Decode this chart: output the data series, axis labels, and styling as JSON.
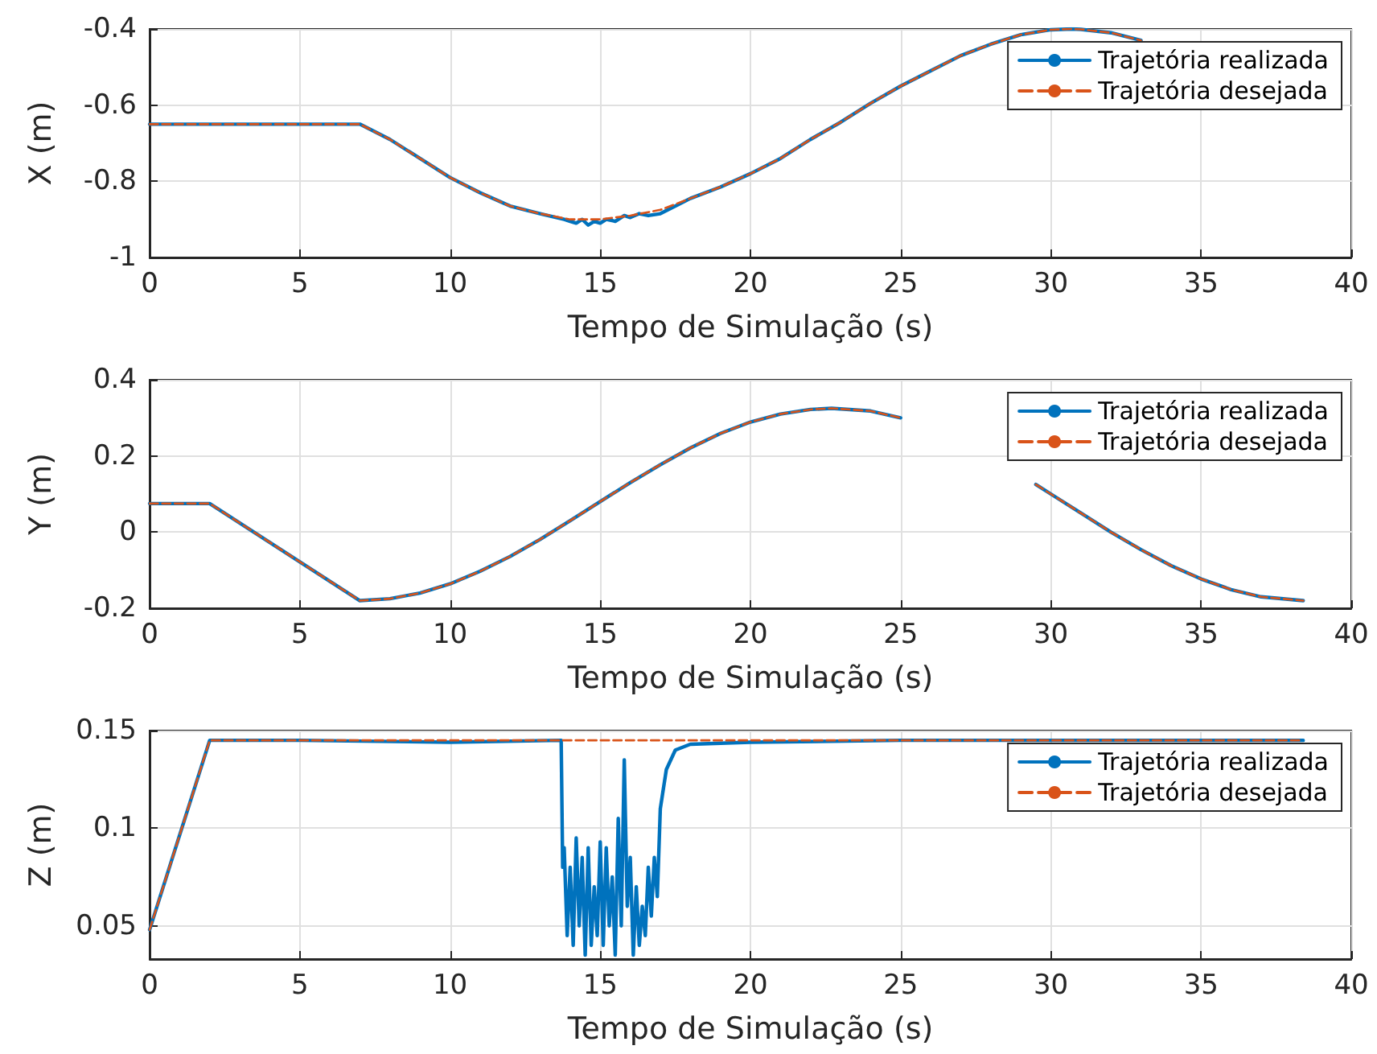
{
  "chart_data": [
    {
      "type": "line",
      "xlabel": "Tempo de Simulação (s)",
      "ylabel": "X (m)",
      "xlim": [
        0,
        40
      ],
      "xticks": [
        0,
        5,
        10,
        15,
        20,
        25,
        30,
        35,
        40
      ],
      "ylim": [
        -1,
        -0.4
      ],
      "yticks": [
        -1,
        -0.8,
        -0.6,
        -0.4
      ],
      "grid": true,
      "legend": "top right",
      "series": [
        {
          "name": "Trajetória realizada",
          "color": "#0072bd",
          "line_style": "solid",
          "x": [
            0,
            7,
            8,
            9,
            10,
            11,
            12,
            13,
            13.8,
            14,
            14.2,
            14.4,
            14.6,
            14.8,
            15,
            15.2,
            15.5,
            15.8,
            16,
            16.3,
            16.6,
            17,
            18,
            19,
            20,
            21,
            22,
            23,
            24,
            25,
            26,
            27,
            28,
            29,
            30,
            30.7,
            31,
            32,
            33
          ],
          "values": [
            -0.65,
            -0.65,
            -0.69,
            -0.74,
            -0.79,
            -0.83,
            -0.865,
            -0.885,
            -0.9,
            -0.905,
            -0.91,
            -0.9,
            -0.915,
            -0.905,
            -0.91,
            -0.9,
            -0.905,
            -0.89,
            -0.895,
            -0.885,
            -0.89,
            -0.885,
            -0.845,
            -0.815,
            -0.78,
            -0.74,
            -0.69,
            -0.645,
            -0.595,
            -0.55,
            -0.51,
            -0.47,
            -0.44,
            -0.415,
            -0.402,
            -0.4,
            -0.401,
            -0.41,
            -0.43
          ]
        },
        {
          "name": "Trajetória desejada",
          "color": "#d95319",
          "line_style": "dashed",
          "x": [
            0,
            7,
            8,
            9,
            10,
            11,
            12,
            13,
            14,
            15,
            16,
            17,
            18,
            19,
            20,
            21,
            22,
            23,
            24,
            25,
            26,
            27,
            28,
            29,
            30,
            30.7,
            31,
            32,
            33
          ],
          "values": [
            -0.65,
            -0.65,
            -0.69,
            -0.74,
            -0.79,
            -0.83,
            -0.865,
            -0.885,
            -0.9,
            -0.9,
            -0.89,
            -0.875,
            -0.845,
            -0.815,
            -0.78,
            -0.74,
            -0.69,
            -0.645,
            -0.595,
            -0.55,
            -0.51,
            -0.47,
            -0.44,
            -0.415,
            -0.402,
            -0.4,
            -0.401,
            -0.41,
            -0.43
          ]
        }
      ]
    },
    {
      "type": "line",
      "xlabel": "Tempo de Simulação (s)",
      "ylabel": "Y (m)",
      "xlim": [
        0,
        40
      ],
      "xticks": [
        0,
        5,
        10,
        15,
        20,
        25,
        30,
        35,
        40
      ],
      "ylim": [
        -0.2,
        0.4
      ],
      "yticks": [
        -0.2,
        0,
        0.2,
        0.4
      ],
      "grid": true,
      "legend": "top right",
      "series": [
        {
          "name": "Trajetória realizada",
          "color": "#0072bd",
          "line_style": "solid",
          "x": [
            0,
            2,
            7,
            8,
            9,
            10,
            11,
            12,
            13,
            14,
            15,
            16,
            17,
            18,
            19,
            20,
            21,
            22,
            22.7,
            24,
            25,
            26,
            29.5,
            30,
            31,
            32,
            33,
            34,
            35,
            36,
            37,
            38.4
          ],
          "values": [
            0.075,
            0.075,
            -0.18,
            -0.175,
            -0.16,
            -0.136,
            -0.103,
            -0.064,
            -0.019,
            0.03,
            0.08,
            0.13,
            0.177,
            0.221,
            0.259,
            0.289,
            0.31,
            0.322,
            0.325,
            0.318,
            0.3,
            null,
            0.125,
            0.1,
            0.05,
            0,
            -0.046,
            -0.088,
            -0.123,
            -0.151,
            -0.17,
            -0.18
          ]
        },
        {
          "name": "Trajetória desejada",
          "color": "#d95319",
          "line_style": "dashed",
          "x": [
            0,
            2,
            7,
            8,
            9,
            10,
            11,
            12,
            13,
            14,
            15,
            16,
            17,
            18,
            19,
            20,
            21,
            22,
            22.7,
            24,
            25,
            26,
            29.5,
            30,
            31,
            32,
            33,
            34,
            35,
            36,
            37,
            38.4
          ],
          "values": [
            0.075,
            0.075,
            -0.18,
            -0.175,
            -0.16,
            -0.136,
            -0.103,
            -0.064,
            -0.019,
            0.03,
            0.08,
            0.13,
            0.177,
            0.221,
            0.259,
            0.289,
            0.31,
            0.322,
            0.325,
            0.318,
            0.3,
            null,
            0.125,
            0.1,
            0.05,
            0,
            -0.046,
            -0.088,
            -0.123,
            -0.151,
            -0.17,
            -0.18
          ]
        }
      ]
    },
    {
      "type": "line",
      "xlabel": "Tempo de Simulação (s)",
      "ylabel": "Z (m)",
      "xlim": [
        0,
        40
      ],
      "xticks": [
        0,
        5,
        10,
        15,
        20,
        25,
        30,
        35,
        40
      ],
      "ylim": [
        0.033,
        0.15
      ],
      "yticks": [
        0.05,
        0.1,
        0.15
      ],
      "grid": true,
      "legend": "top right",
      "series": [
        {
          "name": "Trajetória realizada",
          "color": "#0072bd",
          "line_style": "solid",
          "x": [
            0,
            2,
            5,
            10,
            13.7,
            13.75,
            13.8,
            13.9,
            14,
            14.1,
            14.2,
            14.3,
            14.4,
            14.5,
            14.6,
            14.7,
            14.8,
            14.9,
            15,
            15.1,
            15.2,
            15.3,
            15.4,
            15.5,
            15.6,
            15.7,
            15.8,
            15.9,
            16,
            16.1,
            16.2,
            16.3,
            16.4,
            16.5,
            16.6,
            16.7,
            16.8,
            16.9,
            17,
            17.2,
            17.5,
            18,
            20,
            25,
            30,
            38.4
          ],
          "values": [
            0.048,
            0.145,
            0.145,
            0.144,
            0.145,
            0.08,
            0.09,
            0.045,
            0.08,
            0.04,
            0.095,
            0.05,
            0.085,
            0.035,
            0.09,
            0.04,
            0.07,
            0.045,
            0.093,
            0.04,
            0.09,
            0.05,
            0.075,
            0.035,
            0.105,
            0.05,
            0.135,
            0.06,
            0.085,
            0.035,
            0.07,
            0.04,
            0.06,
            0.045,
            0.08,
            0.055,
            0.085,
            0.065,
            0.11,
            0.13,
            0.14,
            0.143,
            0.144,
            0.145,
            0.145,
            0.145
          ]
        },
        {
          "name": "Trajetória desejada",
          "color": "#d95319",
          "line_style": "dashed",
          "x": [
            0,
            2,
            38.4
          ],
          "values": [
            0.048,
            0.145,
            0.145
          ]
        }
      ]
    }
  ]
}
